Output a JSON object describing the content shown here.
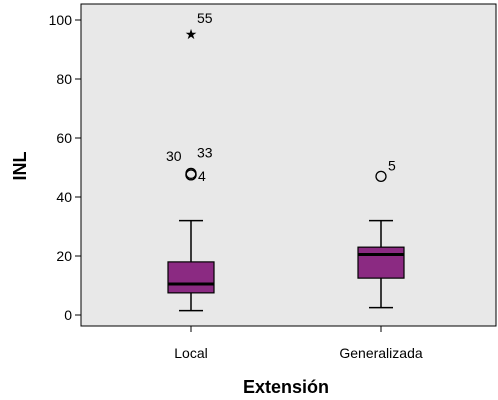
{
  "chart_data": {
    "type": "boxplot",
    "xlabel": "Extensión",
    "ylabel": "INL",
    "ylim": [
      -2,
      102
    ],
    "yticks": [
      0,
      20,
      40,
      60,
      80,
      100
    ],
    "grid": false,
    "colors": {
      "plot_background": "#e8e8e8",
      "box_fill": "#8b2a82",
      "line": "#000000"
    },
    "categories": [
      "Local",
      "Generalizada"
    ],
    "boxes": [
      {
        "category": "Local",
        "whisker_low": 1.5,
        "q1": 7.5,
        "median": 10.5,
        "q3": 18,
        "whisker_high": 32,
        "outliers": [
          {
            "id": "30",
            "value": 47.5,
            "symbol": "circle"
          },
          {
            "id": "33",
            "value": 48,
            "symbol": "circle"
          },
          {
            "id": "4",
            "value": 47.5,
            "symbol": "circle"
          },
          {
            "id": "55",
            "value": 96,
            "symbol": "star"
          }
        ]
      },
      {
        "category": "Generalizada",
        "whisker_low": 2.5,
        "q1": 12.5,
        "median": 20.5,
        "q3": 23,
        "whisker_high": 32,
        "outliers": [
          {
            "id": "5",
            "value": 47,
            "symbol": "circle"
          }
        ]
      }
    ]
  }
}
